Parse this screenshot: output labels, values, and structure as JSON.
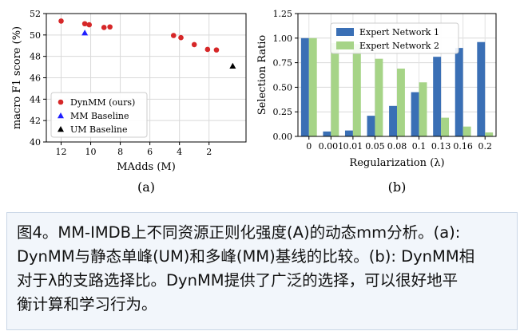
{
  "chart_data": [
    {
      "type": "scatter",
      "panel_label": "(a)",
      "xlabel": "MAdds (M)",
      "ylabel": "macro F1 score (%)",
      "xlim": [
        13,
        -0.5
      ],
      "ylim": [
        40,
        52
      ],
      "xticks": [
        "12",
        "10",
        "8",
        "6",
        "4",
        "2"
      ],
      "xtick_values": [
        12,
        10,
        8,
        6,
        4,
        2
      ],
      "yticks": [
        "40",
        "42",
        "44",
        "46",
        "48",
        "50",
        "52"
      ],
      "ytick_values": [
        40,
        42,
        44,
        46,
        48,
        50,
        52
      ],
      "grid": true,
      "legend_position": "lower-left",
      "series": [
        {
          "name": "DynMM (ours)",
          "color": "#d62728",
          "marker": "circle",
          "points": [
            {
              "x": 12.0,
              "y": 51.3
            },
            {
              "x": 10.4,
              "y": 51.05
            },
            {
              "x": 10.1,
              "y": 50.95
            },
            {
              "x": 9.1,
              "y": 50.7
            },
            {
              "x": 8.7,
              "y": 50.75
            },
            {
              "x": 4.4,
              "y": 49.95
            },
            {
              "x": 3.9,
              "y": 49.75
            },
            {
              "x": 3.0,
              "y": 49.1
            },
            {
              "x": 2.1,
              "y": 48.65
            },
            {
              "x": 1.5,
              "y": 48.6
            }
          ]
        },
        {
          "name": "MM Baseline",
          "color": "#1f1fff",
          "marker": "triangle",
          "points": [
            {
              "x": 10.4,
              "y": 50.2
            }
          ]
        },
        {
          "name": "UM Baseline",
          "color": "#000000",
          "marker": "triangle",
          "points": [
            {
              "x": 0.4,
              "y": 47.1
            }
          ]
        }
      ]
    },
    {
      "type": "bar",
      "panel_label": "(b)",
      "xlabel": "Regularization (λ)",
      "ylabel": "Selection Ratio",
      "categories": [
        "0",
        "0.001",
        "0.01",
        "0.05",
        "0.08",
        "0.1",
        "0.13",
        "0.16",
        "0.2"
      ],
      "ylim": [
        0,
        1.25
      ],
      "yticks": [
        "0.00",
        "0.25",
        "0.50",
        "0.75",
        "1.00",
        "1.25"
      ],
      "ytick_values": [
        0,
        0.25,
        0.5,
        0.75,
        1.0,
        1.25
      ],
      "grid": true,
      "legend_position": "top-center",
      "series": [
        {
          "name": "Expert Network 1",
          "color": "#3a6fb5",
          "values": [
            1.0,
            0.05,
            0.06,
            0.21,
            0.31,
            0.45,
            0.81,
            0.9,
            0.96
          ]
        },
        {
          "name": "Expert Network 2",
          "color": "#a6d487",
          "values": [
            1.0,
            0.95,
            0.94,
            0.79,
            0.69,
            0.55,
            0.19,
            0.1,
            0.04
          ]
        }
      ]
    }
  ],
  "caption": {
    "lines": [
      "图4。MM-IMDB上不同资源正则化强度(A)的动态mm分析。(a):",
      "DynMM与静态单峰(UM)和多峰(MM)基线的比较。(b): DynMM相",
      "对于λ的支路选择比。DynMM提供了广泛的选择，可以很好地平",
      "衡计算和学习行为。"
    ]
  }
}
